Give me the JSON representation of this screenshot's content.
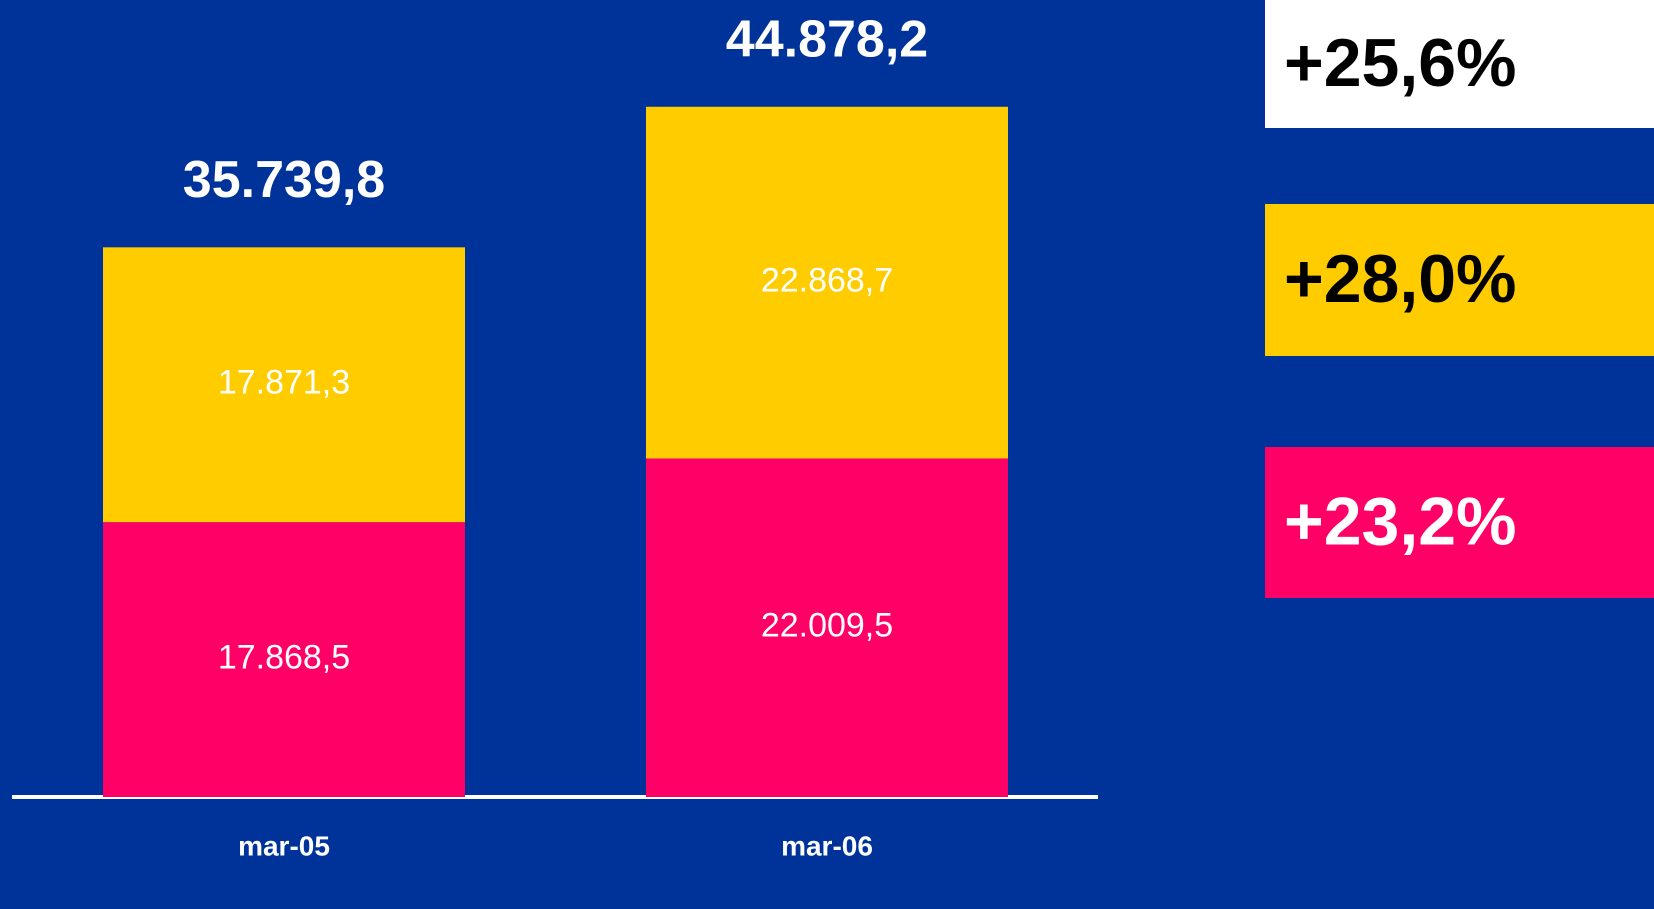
{
  "chart_data": {
    "type": "stacked_bar",
    "categories": [
      "mar-05",
      "mar-06"
    ],
    "series": [
      {
        "color": "#ff0066",
        "values": [
          17868.5,
          22009.5
        ],
        "value_labels": [
          "17.868,5",
          "22.009,5"
        ]
      },
      {
        "color": "#ffcc00",
        "values": [
          17871.3,
          22868.7
        ],
        "value_labels": [
          "17.871,3",
          "22.868,7"
        ]
      }
    ],
    "totals": [
      35739.8,
      44878.2
    ],
    "total_labels": [
      "35.739,8",
      "44.878,2"
    ],
    "annotations": [
      {
        "text": "+25,6%",
        "color": "#ffffff"
      },
      {
        "text": "+28,0%",
        "color": "#ffcc00"
      },
      {
        "text": "+23,2%",
        "color": "#ff0066"
      }
    ]
  }
}
